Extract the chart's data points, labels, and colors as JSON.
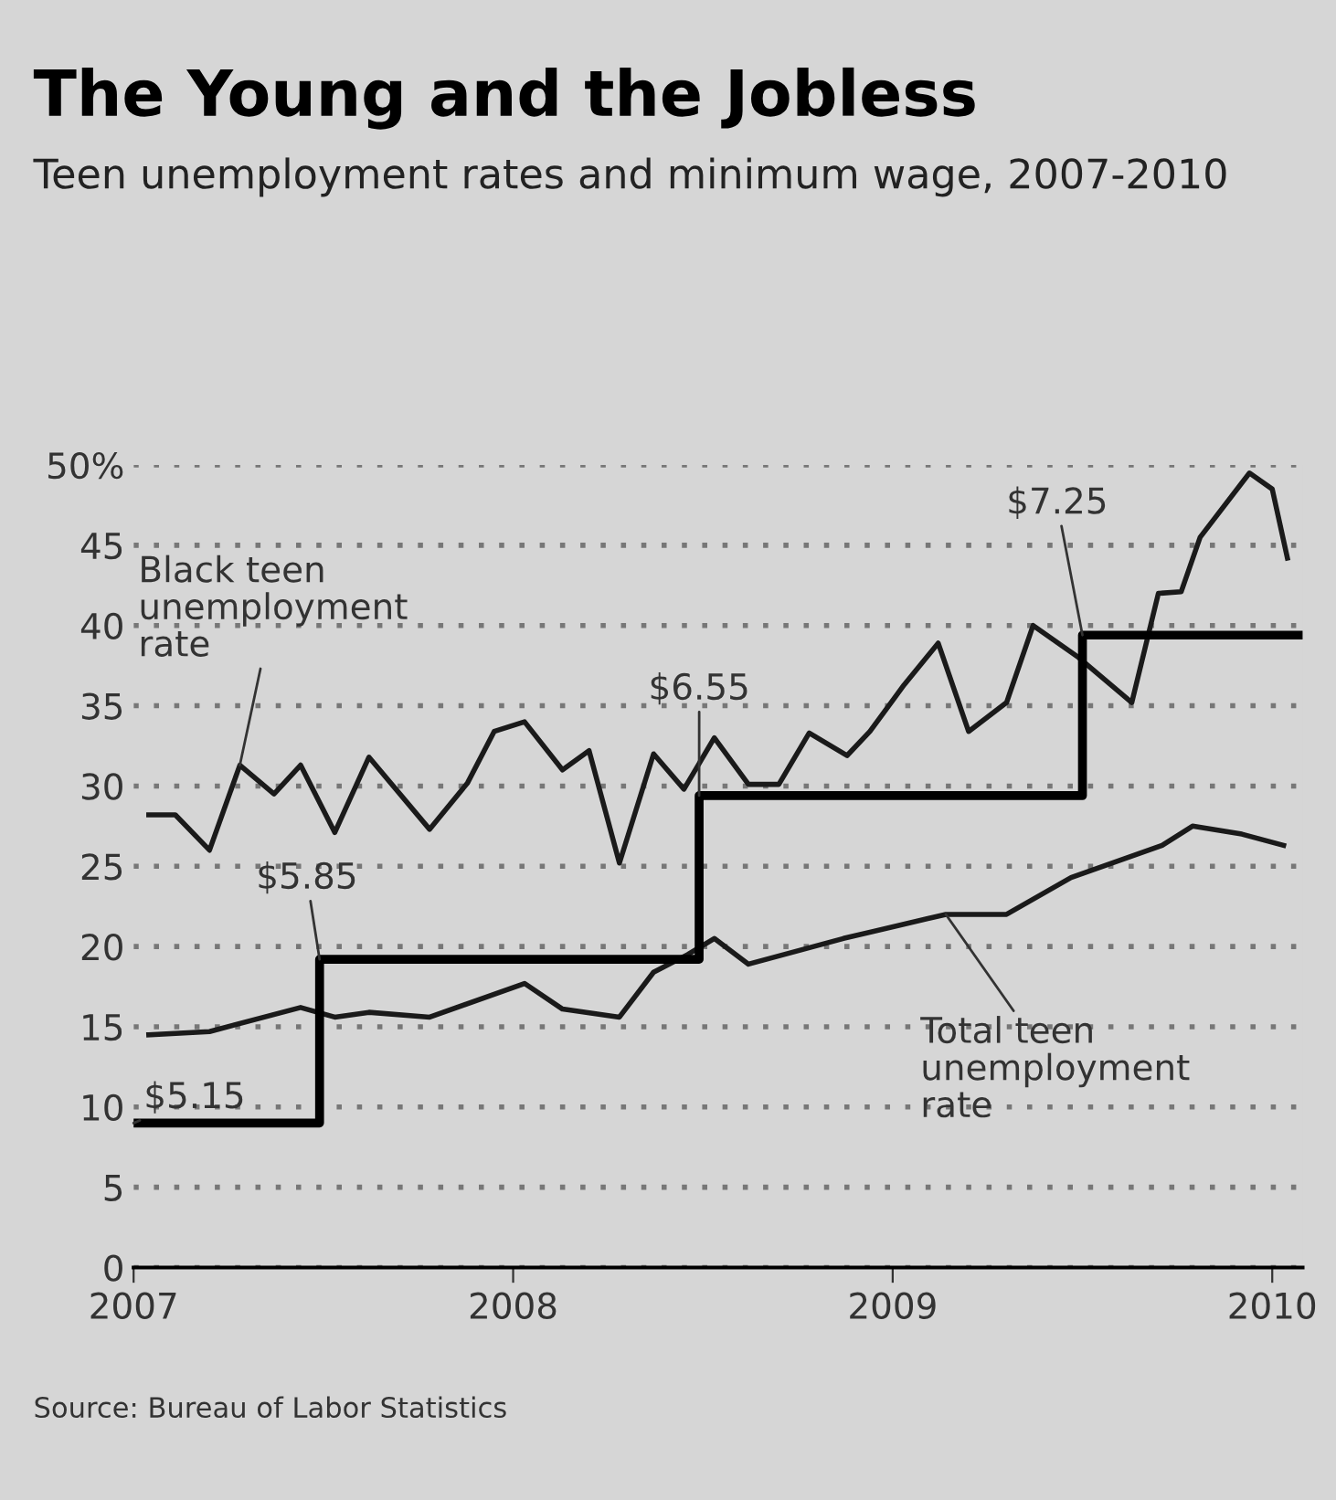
{
  "chart_data": {
    "type": "line",
    "title": "The Young and the Jobless",
    "subtitle": "Teen unemployment rates and minimum wage, 2007-2010",
    "series": [
      {
        "color": "#1a1a1a",
        "x": [
          2007.04,
          2007.11,
          2007.2,
          2007.28,
          2007.37,
          2007.44,
          2007.53,
          2007.62,
          2007.78,
          2007.88,
          2007.95,
          2008.03,
          2008.13,
          2008.2,
          2008.28,
          2008.37,
          2008.45,
          2008.53,
          2008.62,
          2008.7,
          2008.78,
          2008.88,
          2008.94,
          2009.03,
          2009.12,
          2009.2,
          2009.3,
          2009.37,
          2009.49,
          2009.63,
          2009.7,
          2009.76,
          2009.81,
          2009.94,
          2010.0,
          2010.04
        ],
        "values": [
          28.2,
          28.2,
          26.0,
          31.3,
          29.5,
          31.3,
          27.1,
          31.8,
          27.3,
          30.2,
          33.4,
          34.0,
          31.0,
          32.2,
          25.2,
          32.0,
          29.8,
          33.0,
          30.1,
          30.1,
          33.3,
          31.9,
          33.4,
          36.3,
          38.9,
          33.4,
          35.2,
          40.0,
          38.0,
          35.2,
          42.0,
          42.1,
          45.5,
          49.5,
          48.5,
          44.2
        ]
      },
      {
        "color": "#1a1a1a",
        "x": [
          2007.04,
          2007.2,
          2007.44,
          2007.53,
          2007.62,
          2007.78,
          2008.03,
          2008.13,
          2008.28,
          2008.37,
          2008.46,
          2008.53,
          2008.62,
          2008.87,
          2009.14,
          2009.3,
          2009.47,
          2009.71,
          2009.79,
          2009.92,
          2010.03
        ],
        "values": [
          14.5,
          14.7,
          16.2,
          15.6,
          15.9,
          15.6,
          17.7,
          16.1,
          15.6,
          18.4,
          19.5,
          20.5,
          18.9,
          20.5,
          22.0,
          22.0,
          24.3,
          26.3,
          27.5,
          27.0,
          26.3
        ]
      },
      {
        "type": "step",
        "color": "#000000",
        "x": [
          2007.0,
          2007.49,
          2008.49,
          2009.5,
          2010.07
        ],
        "values": [
          9.0,
          19.2,
          29.4,
          39.4,
          39.4
        ]
      }
    ],
    "xlim": [
      2007,
      2010.08
    ],
    "xticks": [
      2007,
      2008,
      2009,
      2010
    ],
    "ylim": [
      0,
      50
    ],
    "yticks": [
      0,
      5,
      10,
      15,
      20,
      25,
      30,
      35,
      40,
      45,
      {
        "value": 50,
        "label": "50%"
      }
    ],
    "grid": "y",
    "annotations": [
      {
        "text": "Black teen\nunemployment\nrate",
        "x": 2007.28,
        "y": 31.3
      },
      {
        "text": "Total teen\nunemployment\nrate",
        "x": 2009.14,
        "y": 22.0
      },
      {
        "text": "$5.15",
        "x": 2007.0,
        "y": 9.0
      },
      {
        "text": "$5.85",
        "x": 2007.49,
        "y": 19.2
      },
      {
        "text": "$6.55",
        "x": 2008.49,
        "y": 29.4
      },
      {
        "text": "$7.25",
        "x": 2009.5,
        "y": 39.4
      },
      "Source: Bureau of Labor Statistics"
    ]
  }
}
